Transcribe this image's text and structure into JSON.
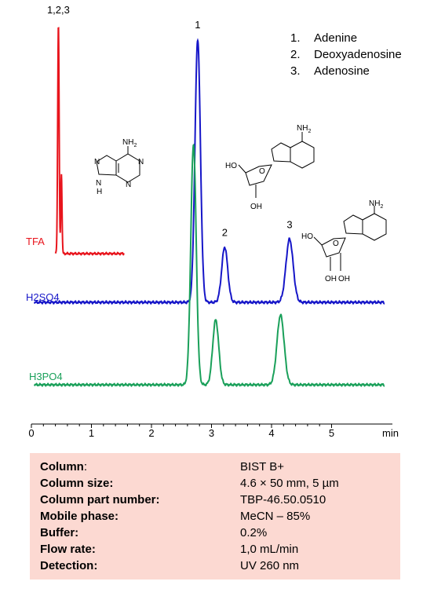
{
  "legend": {
    "items": [
      {
        "num": "1.",
        "label": "Adenine"
      },
      {
        "num": "2.",
        "label": "Deoxyadenosine"
      },
      {
        "num": "3.",
        "label": "Adenosine"
      }
    ]
  },
  "structures": {
    "adenine": {
      "nh2": "NH",
      "nh2_sub": "2",
      "n_labels": [
        "N",
        "N",
        "N",
        "N"
      ],
      "nh": "H"
    },
    "deoxyadenosine": {
      "nh2": "NH",
      "nh2_sub": "2",
      "ho": "HO",
      "oh": "OH",
      "o": "O"
    },
    "adenosine": {
      "nh2": "NH",
      "nh2_sub": "2",
      "ho": "HO",
      "oh1": "OH",
      "oh2": "OH",
      "o": "O"
    }
  },
  "chart_data": {
    "type": "line",
    "xlabel": "min",
    "x_ticks": [
      "0",
      "1",
      "2",
      "3",
      "4",
      "5"
    ],
    "xlim": [
      0,
      5.9
    ],
    "series": [
      {
        "name": "TFA",
        "color": "#e8141c",
        "peaks": [
          {
            "t": 0.45,
            "h": 1.0,
            "w": 0.012
          },
          {
            "t": 0.5,
            "h": 0.35,
            "w": 0.01
          }
        ],
        "x_range": [
          0.4,
          1.55
        ]
      },
      {
        "name": "H2SO4",
        "color": "#1616c8",
        "peaks": [
          {
            "t": 2.77,
            "h": 1.0,
            "w": 0.045
          },
          {
            "t": 3.22,
            "h": 0.21,
            "w": 0.05
          },
          {
            "t": 4.3,
            "h": 0.24,
            "w": 0.06
          }
        ],
        "x_range": [
          0.05,
          5.88
        ]
      },
      {
        "name": "H3PO4",
        "color": "#1aa05a",
        "peaks": [
          {
            "t": 2.7,
            "h": 1.0,
            "w": 0.045
          },
          {
            "t": 3.07,
            "h": 0.27,
            "w": 0.05
          },
          {
            "t": 4.15,
            "h": 0.29,
            "w": 0.06
          }
        ],
        "x_range": [
          0.05,
          5.88
        ]
      }
    ],
    "peak_labels": [
      {
        "text": "1,2,3",
        "t": 0.45,
        "series": "TFA"
      },
      {
        "text": "1",
        "t": 2.77,
        "series": "H2SO4"
      },
      {
        "text": "2",
        "t": 3.22,
        "series": "H2SO4"
      },
      {
        "text": "3",
        "t": 4.3,
        "series": "H2SO4"
      }
    ]
  },
  "conditions": [
    {
      "key": "Column",
      "key_suffix": ":",
      "value": "BIST B+"
    },
    {
      "key": "Column size:",
      "key_suffix": "",
      "value": "4.6 × 50 mm, 5 µm"
    },
    {
      "key": "Column part number:",
      "key_suffix": "",
      "value": "TBP-46.50.0510"
    },
    {
      "key": "Mobile phase:",
      "key_suffix": "",
      "value": "MeCN – 85%"
    },
    {
      "key": "Buffer:",
      "key_suffix": "",
      "value": "0.2%"
    },
    {
      "key": "Flow rate:",
      "key_suffix": "",
      "value": "1,0 mL/min"
    },
    {
      "key": "Detection:",
      "key_suffix": "",
      "value": "UV 260 nm"
    }
  ]
}
